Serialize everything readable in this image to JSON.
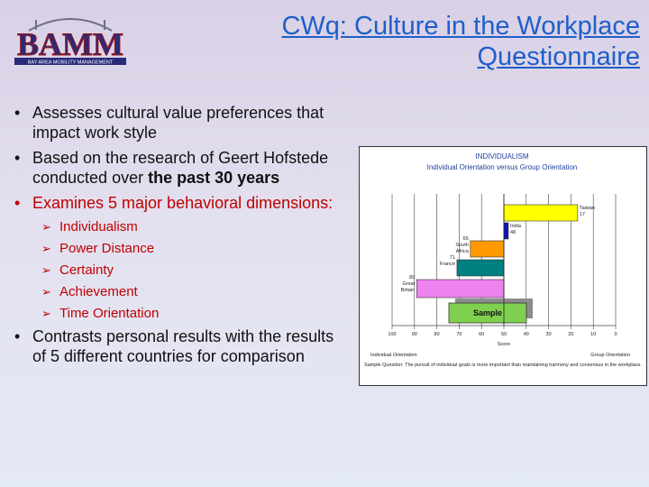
{
  "logo": {
    "text": "BAMM",
    "tagline": "BAY AREA MOBILITY MANAGEMENT"
  },
  "title": "CWq: Culture in the Workplace Questionnaire",
  "bullets": [
    {
      "text": "Assesses cultural value preferences that impact work style"
    },
    {
      "text": "Based on the research of Geert Hofstede conducted over ",
      "bold": "the past 30 years"
    },
    {
      "text": "Examines 5 major behavioral dimensions:",
      "sub": [
        "Individualism",
        "Power Distance",
        "Certainty",
        "Achievement",
        "Time Orientation"
      ]
    },
    {
      "text": "Contrasts personal results with the results of 5 different countries for comparison"
    }
  ],
  "chart_data": {
    "type": "bar",
    "title": "INDIVIDUALISM",
    "subtitle": "Individual Orientation versus Group Orientation",
    "xlabel": "Score",
    "xlim": [
      100,
      0
    ],
    "ticks": [
      "100",
      "90",
      "80",
      "70",
      "60",
      "50",
      "40",
      "30",
      "20",
      "10",
      "0"
    ],
    "axis_left_label": "Individual Orientation",
    "axis_right_label": "Group Orientation",
    "bars": [
      {
        "label": "Taiwan",
        "value": 17,
        "color": "#ffff00"
      },
      {
        "label": "India",
        "value": 48,
        "color": "#1010c0"
      },
      {
        "label": "South Africa",
        "value": 65,
        "color": "#ff9900"
      },
      {
        "label": "France",
        "value": 71,
        "color": "#008080"
      },
      {
        "label": "Great Britain",
        "value": 89,
        "color": "#ee82ee"
      },
      {
        "label": "Sample",
        "value": 75,
        "color": "#80d050"
      }
    ],
    "reference": 50,
    "footnote": "Sample Question: The pursuit of individual goals is more important than maintaining harmony and consensus in the workplace."
  }
}
